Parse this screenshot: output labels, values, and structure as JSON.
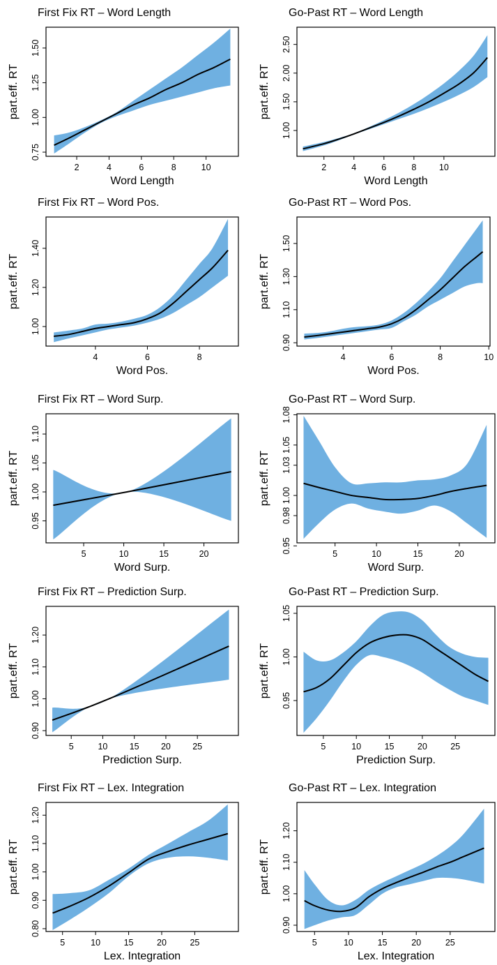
{
  "colors": {
    "band": "#6fb0e1",
    "line": "#000000",
    "axis": "#000000"
  },
  "chart_data": [
    {
      "type": "line",
      "title": "First Fix RT – Word Length",
      "xlabel": "Word Length",
      "ylabel": "part.eff. RT",
      "xlim": [
        0.1,
        12.0
      ],
      "ylim": [
        0.72,
        1.65
      ],
      "xticks": [
        2,
        4,
        6,
        8,
        10
      ],
      "xtick_labels": [
        "2",
        "4",
        "6",
        "8",
        "10"
      ],
      "yticks": [
        0.75,
        1.0,
        1.25,
        1.5
      ],
      "ytick_labels": [
        "0.75",
        "1.00",
        "1.25",
        "1.50"
      ],
      "grid": false,
      "series": [
        {
          "x": [
            0.6,
            1.5,
            2.5,
            3.5,
            4.5,
            5.5,
            6.5,
            7.5,
            8.5,
            9.5,
            10.5,
            11.5
          ],
          "y": [
            0.8,
            0.85,
            0.91,
            0.97,
            1.03,
            1.09,
            1.14,
            1.2,
            1.25,
            1.31,
            1.36,
            1.42
          ],
          "lower": [
            0.74,
            0.81,
            0.89,
            0.96,
            1.01,
            1.05,
            1.09,
            1.12,
            1.15,
            1.18,
            1.21,
            1.23
          ],
          "upper": [
            0.87,
            0.89,
            0.93,
            0.98,
            1.04,
            1.12,
            1.2,
            1.28,
            1.36,
            1.45,
            1.54,
            1.64
          ]
        }
      ]
    },
    {
      "type": "line",
      "title": "Go-Past RT – Word Length",
      "xlabel": "Word Length",
      "ylabel": "part.eff. RT",
      "xlim": [
        0.2,
        13.4
      ],
      "ylim": [
        0.55,
        2.8
      ],
      "xticks": [
        2,
        4,
        6,
        8,
        10
      ],
      "xtick_labels": [
        "2",
        "4",
        "6",
        "8",
        "10"
      ],
      "yticks": [
        1.0,
        1.5,
        2.0,
        2.5
      ],
      "ytick_labels": [
        "1.00",
        "1.50",
        "2.00",
        "2.50"
      ],
      "grid": false,
      "series": [
        {
          "x": [
            0.6,
            2,
            3,
            4,
            5,
            6,
            7,
            8,
            9,
            10,
            11,
            12,
            12.9
          ],
          "y": [
            0.68,
            0.77,
            0.85,
            0.94,
            1.04,
            1.14,
            1.25,
            1.37,
            1.5,
            1.65,
            1.81,
            2.01,
            2.27
          ],
          "lower": [
            0.64,
            0.74,
            0.83,
            0.93,
            1.02,
            1.11,
            1.2,
            1.29,
            1.39,
            1.5,
            1.62,
            1.76,
            1.93
          ],
          "upper": [
            0.72,
            0.8,
            0.87,
            0.95,
            1.06,
            1.18,
            1.31,
            1.46,
            1.63,
            1.82,
            2.04,
            2.31,
            2.66
          ]
        }
      ]
    },
    {
      "type": "line",
      "title": "First Fix RT – Word Pos.",
      "xlabel": "Word Pos.",
      "ylabel": "part.eff. RT",
      "xlim": [
        2.1,
        9.5
      ],
      "ylim": [
        0.9,
        1.56
      ],
      "xticks": [
        4,
        6,
        8
      ],
      "xtick_labels": [
        "4",
        "6",
        "8"
      ],
      "yticks": [
        1.0,
        1.2,
        1.4
      ],
      "ytick_labels": [
        "1.00",
        "1.20",
        "1.40"
      ],
      "grid": false,
      "series": [
        {
          "x": [
            2.4,
            3,
            3.5,
            4,
            4.5,
            5,
            5.5,
            6,
            6.5,
            7,
            7.5,
            8,
            8.5,
            9.1
          ],
          "y": [
            0.95,
            0.96,
            0.975,
            0.99,
            1.0,
            1.01,
            1.02,
            1.04,
            1.07,
            1.12,
            1.18,
            1.24,
            1.3,
            1.39
          ],
          "lower": [
            0.92,
            0.94,
            0.955,
            0.97,
            0.985,
            0.995,
            1.005,
            1.02,
            1.04,
            1.07,
            1.11,
            1.15,
            1.2,
            1.26
          ],
          "upper": [
            0.97,
            0.98,
            0.99,
            1.01,
            1.015,
            1.025,
            1.04,
            1.06,
            1.1,
            1.16,
            1.24,
            1.32,
            1.4,
            1.55
          ]
        }
      ]
    },
    {
      "type": "line",
      "title": "Go-Past RT – Word Pos.",
      "xlabel": "Word Pos.",
      "ylabel": "part.eff. RT",
      "xlim": [
        2.1,
        10.05
      ],
      "ylim": [
        0.88,
        1.66
      ],
      "xticks": [
        4,
        6,
        8,
        10
      ],
      "xtick_labels": [
        "4",
        "6",
        "8",
        "10"
      ],
      "yticks": [
        0.9,
        1.1,
        1.3,
        1.5
      ],
      "ytick_labels": [
        "0.90",
        "1.10",
        "1.30",
        "1.50"
      ],
      "grid": false,
      "series": [
        {
          "x": [
            2.4,
            3,
            3.5,
            4,
            4.5,
            5,
            5.5,
            6,
            6.5,
            7,
            7.5,
            8,
            8.5,
            9,
            9.5,
            9.75
          ],
          "y": [
            0.935,
            0.945,
            0.955,
            0.965,
            0.975,
            0.985,
            0.995,
            1.015,
            1.05,
            1.1,
            1.16,
            1.22,
            1.29,
            1.36,
            1.42,
            1.45
          ],
          "lower": [
            0.92,
            0.93,
            0.94,
            0.95,
            0.96,
            0.97,
            0.98,
            0.99,
            1.03,
            1.07,
            1.12,
            1.16,
            1.2,
            1.24,
            1.26,
            1.26
          ],
          "upper": [
            0.955,
            0.96,
            0.97,
            0.985,
            0.995,
            1.0,
            1.01,
            1.035,
            1.08,
            1.14,
            1.21,
            1.29,
            1.39,
            1.49,
            1.59,
            1.64
          ]
        }
      ]
    },
    {
      "type": "line",
      "title": "First Fix RT – Word Surp.",
      "xlabel": "Word Surp.",
      "ylabel": "part.eff. RT",
      "xlim": [
        0.3,
        24.3
      ],
      "ylim": [
        0.912,
        1.135
      ],
      "xticks": [
        5,
        10,
        15,
        20
      ],
      "xtick_labels": [
        "5",
        "10",
        "15",
        "20"
      ],
      "yticks": [
        0.95,
        1.0,
        1.05,
        1.1
      ],
      "ytick_labels": [
        "0.95",
        "1.00",
        "1.05",
        "1.10"
      ],
      "grid": false,
      "series": [
        {
          "x": [
            1.2,
            10.4,
            23.4
          ],
          "y": [
            0.977,
            1.0,
            1.035
          ],
          "lower": [
            0.918,
            1.0,
            0.95
          ],
          "upper": [
            1.038,
            1.0,
            1.127
          ]
        }
      ]
    },
    {
      "type": "line",
      "title": "Go-Past RT – Word Surp.",
      "xlabel": "Word Surp.",
      "ylabel": "part.eff. RT",
      "xlim": [
        0.4,
        24.3
      ],
      "ylim": [
        0.953,
        1.081
      ],
      "xticks": [
        5,
        10,
        15,
        20
      ],
      "xtick_labels": [
        "5",
        "10",
        "15",
        "20"
      ],
      "yticks": [
        0.95,
        0.98,
        1.0,
        1.03,
        1.05,
        1.08
      ],
      "ytick_labels": [
        "0.95",
        "0.98",
        "1.00",
        "1.03",
        "1.05",
        "1.08"
      ],
      "grid": false,
      "series": [
        {
          "x": [
            1.2,
            3,
            5,
            7,
            9,
            11,
            13,
            15,
            17,
            19,
            21,
            23.3
          ],
          "y": [
            1.012,
            1.008,
            1.004,
            1.0,
            0.998,
            0.996,
            0.996,
            0.997,
            1.0,
            1.004,
            1.007,
            1.01
          ],
          "lower": [
            0.957,
            0.972,
            0.986,
            0.992,
            0.987,
            0.984,
            0.982,
            0.985,
            0.99,
            0.984,
            0.972,
            0.958
          ],
          "upper": [
            1.079,
            1.055,
            1.028,
            1.012,
            1.012,
            1.013,
            1.013,
            1.015,
            1.016,
            1.02,
            1.032,
            1.07
          ]
        }
      ]
    },
    {
      "type": "line",
      "title": "First Fix RT – Prediction Surp.",
      "xlabel": "Prediction Surp.",
      "ylabel": "part.eff. RT",
      "xlim": [
        1.0,
        31.5
      ],
      "ylim": [
        0.885,
        1.29
      ],
      "xticks": [
        5,
        10,
        15,
        20,
        25
      ],
      "xtick_labels": [
        "5",
        "10",
        "15",
        "20",
        "25"
      ],
      "yticks": [
        0.9,
        1.0,
        1.1,
        1.2
      ],
      "ytick_labels": [
        "0.90",
        "1.00",
        "1.10",
        "1.20"
      ],
      "grid": false,
      "series": [
        {
          "x": [
            2,
            11,
            30
          ],
          "y": [
            0.933,
            1.0,
            1.165
          ],
          "lower": [
            0.895,
            1.0,
            1.06
          ],
          "upper": [
            0.972,
            1.0,
            1.28
          ]
        }
      ]
    },
    {
      "type": "line",
      "title": "Go-Past RT – Prediction Surp.",
      "xlabel": "Prediction Surp.",
      "ylabel": "part.eff. RT",
      "xlim": [
        1.0,
        31.0
      ],
      "ylim": [
        0.91,
        1.058
      ],
      "xticks": [
        5,
        10,
        15,
        20,
        25
      ],
      "xtick_labels": [
        "5",
        "10",
        "15",
        "20",
        "25"
      ],
      "yticks": [
        0.95,
        1.0,
        1.05
      ],
      "ytick_labels": [
        "0.95",
        "1.00",
        "1.05"
      ],
      "grid": false,
      "series": [
        {
          "x": [
            2,
            4,
            6,
            8,
            10,
            12,
            14,
            16,
            18,
            20,
            22,
            24,
            26,
            28,
            30
          ],
          "y": [
            0.96,
            0.965,
            0.975,
            0.99,
            1.005,
            1.016,
            1.022,
            1.025,
            1.025,
            1.02,
            1.01,
            1.0,
            0.99,
            0.98,
            0.972
          ],
          "lower": [
            0.913,
            0.93,
            0.95,
            0.972,
            0.991,
            1.002,
            1.0,
            0.996,
            0.99,
            0.982,
            0.972,
            0.963,
            0.955,
            0.95,
            0.945
          ],
          "upper": [
            1.006,
            0.996,
            0.996,
            1.005,
            1.018,
            1.035,
            1.048,
            1.052,
            1.051,
            1.042,
            1.026,
            1.012,
            1.004,
            1.0,
            0.999
          ]
        }
      ]
    },
    {
      "type": "line",
      "title": "First Fix RT – Lex. Integration",
      "xlabel": "Lex. Integration",
      "ylabel": "part.eff. RT",
      "xlim": [
        2.5,
        31.6
      ],
      "ylim": [
        0.79,
        1.245
      ],
      "xticks": [
        5,
        10,
        15,
        20,
        25
      ],
      "xtick_labels": [
        "5",
        "10",
        "15",
        "20",
        "25"
      ],
      "yticks": [
        0.8,
        0.9,
        1.0,
        1.1,
        1.2
      ],
      "ytick_labels": [
        "0.80",
        "0.90",
        "1.00",
        "1.10",
        "1.20"
      ],
      "grid": false,
      "series": [
        {
          "x": [
            3.5,
            6,
            9,
            12,
            15,
            18,
            21,
            24,
            27,
            30
          ],
          "y": [
            0.855,
            0.878,
            0.91,
            0.95,
            0.997,
            1.045,
            1.072,
            1.095,
            1.115,
            1.135
          ],
          "lower": [
            0.795,
            0.83,
            0.875,
            0.925,
            0.985,
            1.03,
            1.05,
            1.055,
            1.05,
            1.04
          ],
          "upper": [
            0.922,
            0.925,
            0.935,
            0.972,
            1.012,
            1.06,
            1.1,
            1.14,
            1.18,
            1.238
          ]
        }
      ]
    },
    {
      "type": "line",
      "title": "Go-Past RT – Lex. Integration",
      "xlabel": "Lex. Integration",
      "ylabel": "part.eff. RT",
      "xlim": [
        2.4,
        31.6
      ],
      "ylim": [
        0.88,
        1.29
      ],
      "xticks": [
        5,
        10,
        15,
        20,
        25
      ],
      "xtick_labels": [
        "5",
        "10",
        "15",
        "20",
        "25"
      ],
      "yticks": [
        0.9,
        1.0,
        1.1,
        1.2
      ],
      "ytick_labels": [
        "0.90",
        "1.00",
        "1.10",
        "1.20"
      ],
      "grid": false,
      "series": [
        {
          "x": [
            3.5,
            5,
            7,
            9,
            11,
            13,
            15,
            17,
            19,
            21,
            23,
            25,
            27,
            30
          ],
          "y": [
            0.978,
            0.962,
            0.948,
            0.944,
            0.955,
            0.99,
            1.016,
            1.035,
            1.052,
            1.068,
            1.085,
            1.1,
            1.118,
            1.145
          ],
          "lower": [
            0.888,
            0.9,
            0.915,
            0.925,
            0.932,
            0.965,
            1.0,
            1.02,
            1.03,
            1.04,
            1.05,
            1.05,
            1.045,
            1.032
          ],
          "upper": [
            1.075,
            1.03,
            0.98,
            0.963,
            0.98,
            1.012,
            1.035,
            1.055,
            1.075,
            1.095,
            1.12,
            1.15,
            1.19,
            1.27
          ]
        }
      ]
    }
  ]
}
